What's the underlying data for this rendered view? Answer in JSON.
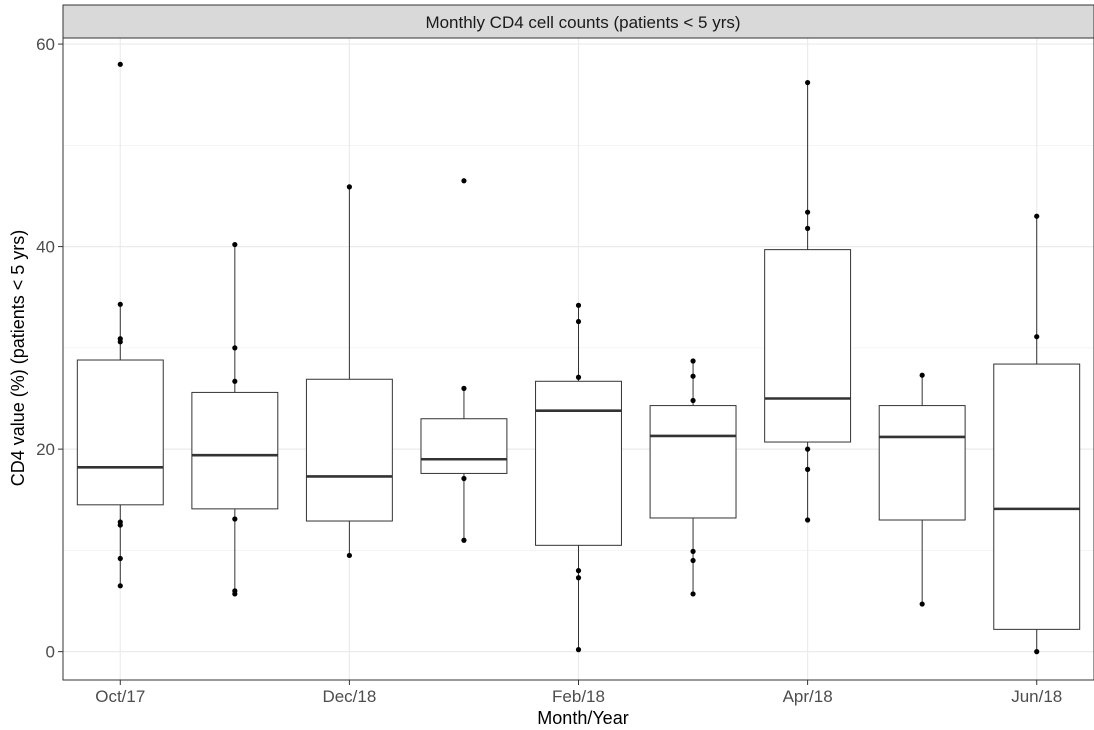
{
  "chart_data": {
    "type": "boxplot",
    "title": "Monthly CD4 cell counts (patients < 5 yrs)",
    "xlabel": "Month/Year",
    "ylabel": "CD4 value (%) (patients < 5 yrs)",
    "ylim": [
      -2.8,
      60.6
    ],
    "yticks": [
      0,
      20,
      40,
      60
    ],
    "x_tick_labels": [
      "Oct/17",
      "Dec/18",
      "Feb/18",
      "Apr/18",
      "Jun/18"
    ],
    "grid": true,
    "boxes": [
      {
        "position": 1,
        "q1": 14.5,
        "median": 18.2,
        "q3": 28.8,
        "whisker_low": 6.5,
        "whisker_high": 34.3,
        "points": [
          58.0,
          34.3,
          30.9,
          30.6,
          12.8,
          12.5,
          9.2,
          6.5
        ]
      },
      {
        "position": 2,
        "q1": 14.1,
        "median": 19.4,
        "q3": 25.6,
        "whisker_low": 5.7,
        "whisker_high": 40.2,
        "points": [
          40.2,
          30.0,
          26.7,
          13.1,
          6.0,
          5.7
        ]
      },
      {
        "position": 3,
        "q1": 12.9,
        "median": 17.3,
        "q3": 26.9,
        "whisker_low": 9.5,
        "whisker_high": 45.9,
        "points": [
          45.9,
          9.5
        ]
      },
      {
        "position": 4,
        "q1": 17.6,
        "median": 19.0,
        "q3": 23.0,
        "whisker_low": 11.0,
        "whisker_high": 26.0,
        "points": [
          46.5,
          26.0,
          17.1,
          11.0
        ]
      },
      {
        "position": 5,
        "q1": 10.5,
        "median": 23.8,
        "q3": 26.7,
        "whisker_low": 0.2,
        "whisker_high": 34.2,
        "points": [
          34.2,
          32.6,
          27.1,
          8.0,
          7.3,
          0.2
        ]
      },
      {
        "position": 6,
        "q1": 13.2,
        "median": 21.3,
        "q3": 24.3,
        "whisker_low": 5.7,
        "whisker_high": 28.7,
        "points": [
          28.7,
          27.2,
          24.8,
          9.9,
          9.0,
          5.7
        ]
      },
      {
        "position": 7,
        "q1": 20.7,
        "median": 25.0,
        "q3": 39.7,
        "whisker_low": 13.0,
        "whisker_high": 56.2,
        "points": [
          56.2,
          43.4,
          41.8,
          20.0,
          18.0,
          13.0
        ]
      },
      {
        "position": 8,
        "q1": 13.0,
        "median": 21.2,
        "q3": 24.3,
        "whisker_low": 4.7,
        "whisker_high": 27.3,
        "points": [
          27.3,
          4.7
        ]
      },
      {
        "position": 9,
        "q1": 2.2,
        "median": 14.1,
        "q3": 28.4,
        "whisker_low": 0.0,
        "whisker_high": 43.0,
        "points": [
          43.0,
          31.1,
          0.0
        ]
      }
    ]
  }
}
